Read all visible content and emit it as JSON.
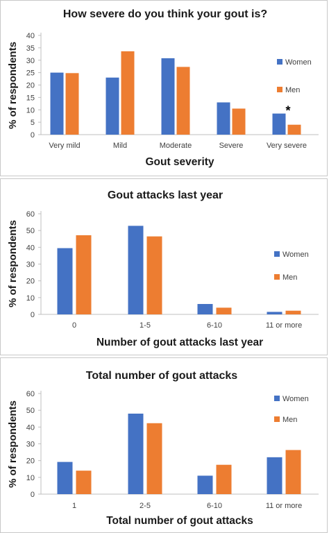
{
  "chart_data": [
    {
      "type": "bar",
      "title": "How severe do you think your gout is?",
      "xlabel": "Gout severity",
      "ylabel": "% of respondents",
      "categories": [
        "Very mild",
        "Mild",
        "Moderate",
        "Severe",
        "Very severe"
      ],
      "ylim": [
        0,
        40
      ],
      "yticks": [
        0,
        5,
        10,
        15,
        20,
        25,
        30,
        35,
        40
      ],
      "series": [
        {
          "name": "Women",
          "values": [
            25,
            23,
            30.8,
            13,
            8.5
          ]
        },
        {
          "name": "Men",
          "values": [
            24.8,
            33.6,
            27.3,
            10.5,
            4
          ]
        }
      ],
      "annotations": [
        {
          "text": "*",
          "category": "Very severe",
          "series": "Women"
        }
      ],
      "legend": "right",
      "grid": false
    },
    {
      "type": "bar",
      "title": "Gout attacks last year",
      "xlabel": "Number of gout attacks last year",
      "ylabel": "% of respondents",
      "categories": [
        "0",
        "1-5",
        "6-10",
        "11 or more"
      ],
      "ylim": [
        0,
        60
      ],
      "yticks": [
        0,
        10,
        20,
        30,
        40,
        50,
        60
      ],
      "series": [
        {
          "name": "Women",
          "values": [
            39.5,
            52.8,
            6.2,
            1.5
          ]
        },
        {
          "name": "Men",
          "values": [
            47.2,
            46.5,
            4,
            2.2
          ]
        }
      ],
      "legend": "right",
      "grid": false
    },
    {
      "type": "bar",
      "title": "Total number of gout attacks",
      "xlabel": "Total number of gout attacks",
      "ylabel": "% of respondents",
      "categories": [
        "1",
        "2-5",
        "6-10",
        "11 or more"
      ],
      "ylim": [
        0,
        60
      ],
      "yticks": [
        0,
        10,
        20,
        30,
        40,
        50,
        60
      ],
      "series": [
        {
          "name": "Women",
          "values": [
            19.2,
            48,
            11,
            22
          ]
        },
        {
          "name": "Men",
          "values": [
            14,
            42.3,
            17.5,
            26.3
          ]
        }
      ],
      "legend": "top-right",
      "grid": false
    }
  ],
  "colors": {
    "Women": "#4472C4",
    "Men": "#ED7D31",
    "axis": "#bfbfbf",
    "text": "#404040",
    "title": "#1a1a1a"
  }
}
